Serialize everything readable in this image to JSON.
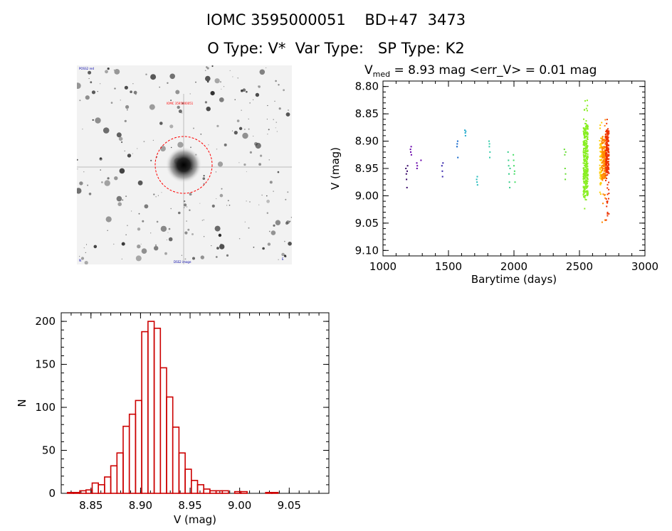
{
  "header": {
    "line1": "IOMC 3595000051    BD+47  3473",
    "line2": "O Type: V*  Var Type:   SP Type: K2"
  },
  "finder": {
    "label_top_left": "POSS2 red",
    "label_target": "IOMC 3595000051",
    "label_bottom_left": "N",
    "label_bottom_center": "DSS2 image",
    "label_bottom_right": "E"
  },
  "colors": {
    "hist_bar": "#cc0000",
    "finder_circle": "#ff0000"
  },
  "chart_data": [
    {
      "type": "scatter",
      "title": "V",
      "title_sub": "med",
      "title_rest": " = 8.93 mag <err_V> = 0.01 mag",
      "xlabel": "Barytime (days)",
      "ylabel": "V (mag)",
      "xlim": [
        1000,
        3000
      ],
      "ylim": [
        9.11,
        8.79
      ],
      "y_inverted": true,
      "xticks": [
        1000,
        1500,
        2000,
        2500,
        3000
      ],
      "yticks": [
        "8.80",
        "8.85",
        "8.90",
        "8.95",
        "9.00",
        "9.05",
        "9.10"
      ],
      "grid": false,
      "series": [
        {
          "color": "#330066",
          "points": [
            [
              1175,
              8.95
            ],
            [
              1178,
              8.96
            ],
            [
              1180,
              8.97
            ],
            [
              1183,
              8.985
            ],
            [
              1185,
              8.955
            ],
            [
              1188,
              8.945
            ]
          ]
        },
        {
          "color": "#6600aa",
          "points": [
            [
              1210,
              8.915
            ],
            [
              1212,
              8.92
            ],
            [
              1215,
              8.91
            ],
            [
              1217,
              8.925
            ],
            [
              1258,
              8.94
            ],
            [
              1260,
              8.95
            ],
            [
              1262,
              8.945
            ],
            [
              1290,
              8.935
            ]
          ]
        },
        {
          "color": "#3322aa",
          "points": [
            [
              1450,
              8.945
            ],
            [
              1453,
              8.955
            ],
            [
              1455,
              8.965
            ],
            [
              1458,
              8.94
            ]
          ]
        },
        {
          "color": "#1166cc",
          "points": [
            [
              1565,
              8.91
            ],
            [
              1567,
              8.905
            ],
            [
              1570,
              8.9
            ],
            [
              1572,
              8.93
            ]
          ]
        },
        {
          "color": "#22aacc",
          "points": [
            [
              1625,
              8.88
            ],
            [
              1628,
              8.885
            ],
            [
              1630,
              8.89
            ],
            [
              1632,
              8.882
            ]
          ]
        },
        {
          "color": "#22bbbb",
          "points": [
            [
              1715,
              8.97
            ],
            [
              1718,
              8.975
            ],
            [
              1720,
              8.965
            ],
            [
              1722,
              8.98
            ]
          ]
        },
        {
          "color": "#33ccaa",
          "points": [
            [
              1810,
              8.9
            ],
            [
              1812,
              8.91
            ],
            [
              1815,
              8.93
            ],
            [
              1817,
              8.92
            ],
            [
              1813,
              8.905
            ]
          ]
        },
        {
          "color": "#33cc88",
          "points": [
            [
              1955,
              8.92
            ],
            [
              1958,
              8.935
            ],
            [
              1960,
              8.945
            ],
            [
              1962,
              8.96
            ],
            [
              1965,
              8.975
            ],
            [
              1968,
              8.985
            ],
            [
              1970,
              8.95
            ]
          ]
        },
        {
          "color": "#44dd66",
          "points": [
            [
              1995,
              8.925
            ],
            [
              1998,
              8.935
            ],
            [
              2000,
              8.945
            ],
            [
              2003,
              8.96
            ],
            [
              2005,
              8.955
            ],
            [
              2008,
              8.975
            ]
          ]
        },
        {
          "color": "#66dd33",
          "points": [
            [
              2385,
              8.915
            ],
            [
              2388,
              8.925
            ],
            [
              2390,
              8.95
            ],
            [
              2392,
              8.97
            ],
            [
              2395,
              8.92
            ],
            [
              2394,
              8.96
            ]
          ]
        }
      ],
      "dense_bands": [
        {
          "color": "#88ee22",
          "x_from": 2530,
          "x_to": 2565,
          "v_from": 8.87,
          "v_to": 9.0,
          "v_min": 8.825,
          "v_max": 9.03,
          "n": 320
        },
        {
          "color": "#ffcc00",
          "x_from": 2655,
          "x_to": 2670,
          "v_from": 8.9,
          "v_to": 8.98,
          "v_min": 8.865,
          "v_max": 9.0,
          "n": 60
        },
        {
          "color": "#ff8800",
          "x_from": 2670,
          "x_to": 2700,
          "v_from": 8.89,
          "v_to": 8.97,
          "v_min": 8.86,
          "v_max": 9.075,
          "n": 160
        },
        {
          "color": "#ee3300",
          "x_from": 2700,
          "x_to": 2725,
          "v_from": 8.88,
          "v_to": 8.96,
          "v_min": 8.86,
          "v_max": 9.045,
          "n": 200
        }
      ]
    },
    {
      "type": "bar",
      "title": "",
      "xlabel": "V (mag)",
      "ylabel": "N",
      "xlim": [
        8.82,
        9.09
      ],
      "ylim": [
        0,
        210
      ],
      "xticks": [
        "8.85",
        "8.90",
        "8.95",
        "9.00",
        "9.05"
      ],
      "yticks": [
        "0",
        "50",
        "100",
        "150",
        "200"
      ],
      "bin_start": 8.82,
      "bin_width": 0.00625,
      "values": [
        0,
        1,
        1,
        3,
        4,
        12,
        10,
        19,
        32,
        47,
        78,
        92,
        108,
        188,
        200,
        192,
        146,
        112,
        77,
        47,
        28,
        15,
        10,
        5,
        3,
        3,
        3,
        0,
        2,
        2,
        0,
        0,
        0,
        1,
        1,
        0
      ],
      "grid": false
    }
  ]
}
